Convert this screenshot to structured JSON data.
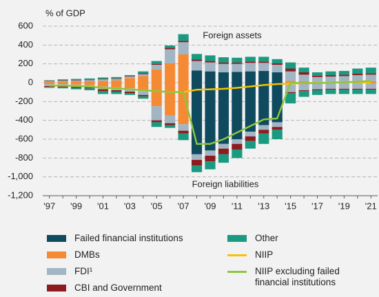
{
  "chart_data": {
    "type": "bar",
    "stacked": true,
    "y_label": "% of GDP",
    "annotations": [
      "Foreign assets",
      "Foreign liabilities"
    ],
    "categories": [
      "'97",
      null,
      "'99",
      null,
      "'01",
      null,
      "'03",
      null,
      "'05",
      null,
      "'07",
      null,
      "'09",
      null,
      "'11",
      null,
      "'13",
      null,
      "'15",
      null,
      "'17",
      null,
      "'19",
      null,
      "'21"
    ],
    "ylim": [
      -1200,
      600
    ],
    "yticks": [
      {
        "value": -1200,
        "label": "-1,200"
      },
      {
        "value": -1000,
        "label": "-1,000"
      },
      -800,
      -600,
      -400,
      -200,
      0,
      200,
      400,
      600
    ],
    "grid": true,
    "series": [
      {
        "name": "Failed financial institutions",
        "color": "#0f4a5f",
        "assets": [
          0,
          0,
          0,
          0,
          0,
          0,
          0,
          0,
          0,
          0,
          0,
          130,
          120,
          110,
          115,
          120,
          125,
          110,
          0,
          0,
          0,
          0,
          0,
          0,
          0
        ],
        "liabilities": [
          0,
          0,
          0,
          0,
          0,
          0,
          0,
          0,
          0,
          0,
          0,
          -760,
          -720,
          -650,
          -600,
          -520,
          -450,
          -420,
          0,
          0,
          0,
          0,
          0,
          0,
          0
        ]
      },
      {
        "name": "DMBs",
        "color": "#f58a35",
        "assets": [
          10,
          12,
          15,
          15,
          20,
          25,
          50,
          70,
          140,
          205,
          300,
          0,
          0,
          0,
          0,
          0,
          0,
          0,
          20,
          15,
          10,
          10,
          10,
          15,
          15
        ],
        "liabilities": [
          -15,
          -15,
          -20,
          -25,
          -40,
          -50,
          -60,
          -90,
          -250,
          -350,
          -440,
          0,
          0,
          0,
          0,
          0,
          0,
          0,
          -20,
          -10,
          -10,
          -10,
          -10,
          -10,
          -10
        ]
      },
      {
        "name": "FDI¹",
        "color": "#a2b5c4",
        "assets": [
          5,
          8,
          10,
          12,
          15,
          15,
          15,
          20,
          50,
          150,
          130,
          100,
          95,
          90,
          85,
          90,
          85,
          80,
          100,
          70,
          50,
          55,
          60,
          65,
          70
        ],
        "liabilities": [
          -20,
          -22,
          -25,
          -25,
          -30,
          -30,
          -35,
          -40,
          -150,
          -80,
          -70,
          -60,
          -55,
          -50,
          -50,
          -50,
          -50,
          -50,
          -80,
          -70,
          -60,
          -55,
          -55,
          -55,
          -55
        ]
      },
      {
        "name": "CBI and Government",
        "color": "#8c1c1f",
        "assets": [
          5,
          5,
          5,
          5,
          5,
          5,
          5,
          10,
          10,
          15,
          15,
          15,
          15,
          15,
          15,
          15,
          15,
          15,
          30,
          25,
          15,
          15,
          15,
          15,
          15
        ],
        "liabilities": [
          -10,
          -10,
          -10,
          -10,
          -20,
          -15,
          -15,
          -15,
          -20,
          -20,
          -30,
          -60,
          -60,
          -60,
          -60,
          -50,
          -40,
          -30,
          -10,
          -10,
          -10,
          -10,
          -10,
          -10,
          -10
        ]
      },
      {
        "name": "Other",
        "color": "#1a9a80",
        "assets": [
          5,
          10,
          10,
          13,
          15,
          15,
          10,
          20,
          30,
          25,
          70,
          60,
          60,
          55,
          50,
          50,
          50,
          45,
          65,
          50,
          35,
          40,
          40,
          55,
          60
        ],
        "liabilities": [
          -10,
          -13,
          -15,
          -20,
          -30,
          -25,
          -20,
          -25,
          -50,
          -30,
          -70,
          -70,
          -85,
          -90,
          -90,
          -80,
          -110,
          -100,
          -110,
          -60,
          -50,
          -45,
          -45,
          -45,
          -45
        ]
      }
    ],
    "lines": [
      {
        "name": "NIIP",
        "color": "#f5c400",
        "values": [
          -30,
          -30,
          -35,
          -40,
          -55,
          -60,
          -70,
          -80,
          -90,
          -100,
          -100,
          -75,
          -70,
          -65,
          -55,
          -40,
          -25,
          -15,
          -10,
          -5,
          0,
          0,
          5,
          5,
          0
        ]
      },
      {
        "name": "NIIP excluding failed financial institutions",
        "color": "#8cc63f",
        "values": [
          -30,
          -30,
          -35,
          -40,
          -55,
          -60,
          -70,
          -80,
          -90,
          -100,
          -100,
          -650,
          -650,
          -600,
          -530,
          -460,
          -390,
          -380,
          0,
          -5,
          -5,
          0,
          5,
          10,
          20
        ]
      }
    ]
  }
}
